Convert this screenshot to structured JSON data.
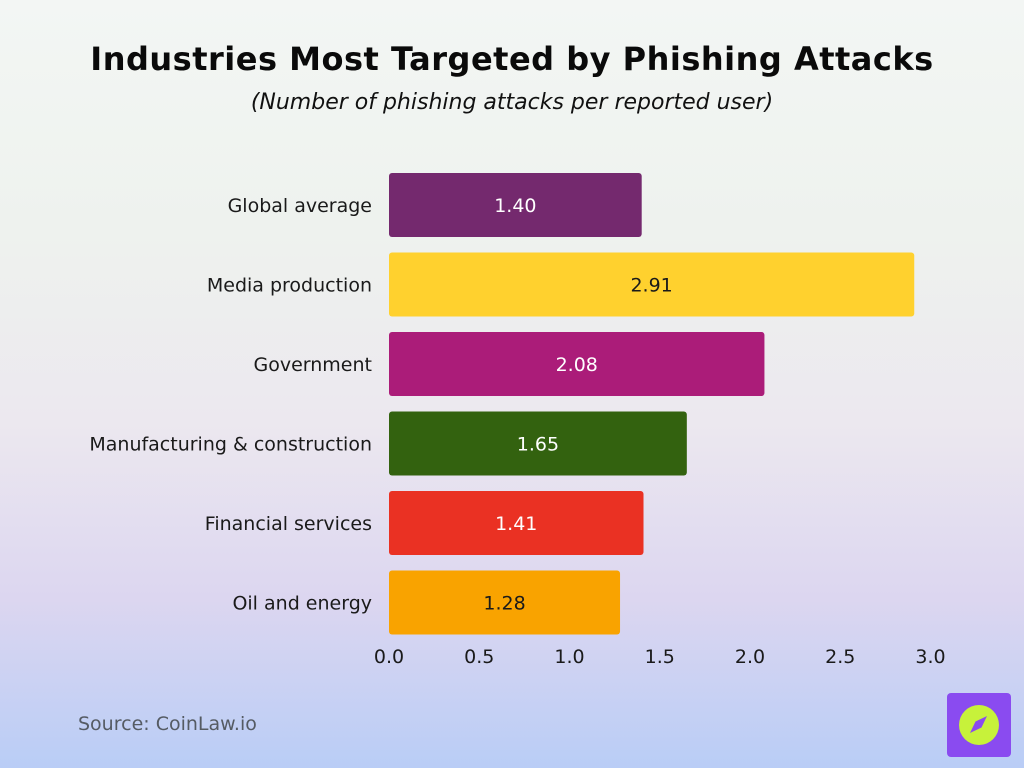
{
  "title": "Industries Most Targeted by Phishing Attacks",
  "subtitle": "(Number of phishing attacks per reported user)",
  "source": "Source: CoinLaw.io",
  "chart_data": {
    "type": "bar",
    "orientation": "horizontal",
    "categories": [
      "Global average",
      "Media production",
      "Government",
      "Manufacturing & construction",
      "Financial services",
      "Oil and energy"
    ],
    "values": [
      1.4,
      2.91,
      2.08,
      1.65,
      1.41,
      1.28
    ],
    "value_labels": [
      "1.40",
      "2.91",
      "2.08",
      "1.65",
      "1.41",
      "1.28"
    ],
    "colors": [
      "#74296e",
      "#ffd12e",
      "#ab1c79",
      "#33620f",
      "#ea3123",
      "#f9a300"
    ],
    "label_colors": [
      "#ffffff",
      "#1a1a1a",
      "#ffffff",
      "#ffffff",
      "#ffffff",
      "#1a1a1a"
    ],
    "xlim": [
      0,
      3.0
    ],
    "xticks": [
      "0.0",
      "0.5",
      "1.0",
      "1.5",
      "2.0",
      "2.5",
      "3.0"
    ],
    "grid": false,
    "legend": "none"
  }
}
